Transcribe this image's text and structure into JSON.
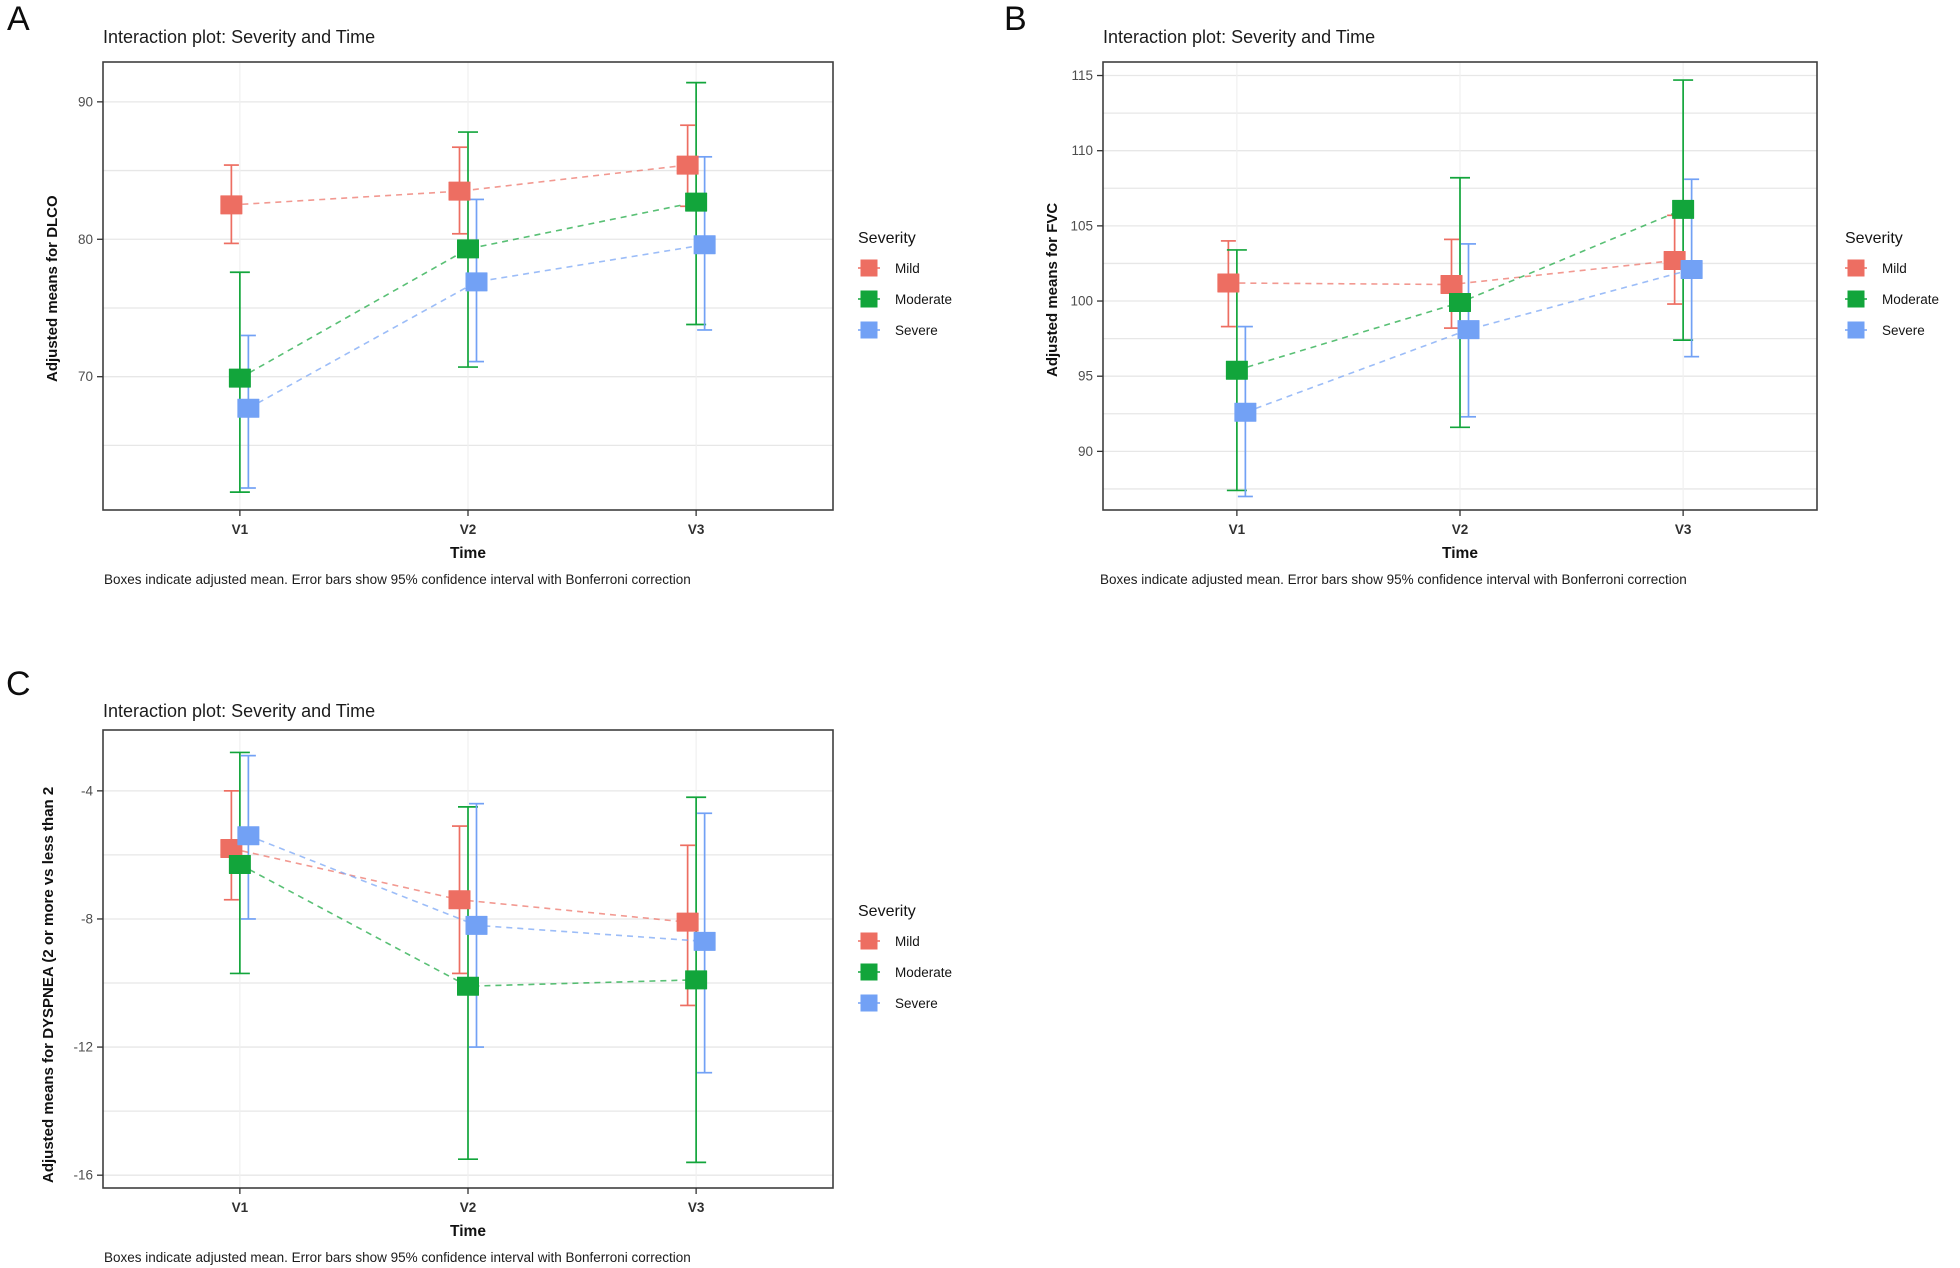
{
  "figure": {
    "legend_title": "Severity",
    "series_names": [
      "Mild",
      "Moderate",
      "Severe"
    ],
    "colors": {
      "mild": "#ED6E62",
      "moderate": "#12A53B",
      "severe": "#72A1F5"
    }
  },
  "chart_data": [
    {
      "type": "line",
      "panel_label": "A",
      "title": "Interaction plot: Severity and Time",
      "ylabel": "Adjusted means for DLCO",
      "xlabel": "Time",
      "caption": "Boxes indicate adjusted mean. Error bars show 95% confidence interval with Bonferroni correction",
      "categories": [
        "V1",
        "V2",
        "V3"
      ],
      "yticks": [
        90,
        80,
        70
      ],
      "gridlines": [
        90,
        85,
        80,
        75,
        70,
        65
      ],
      "ylim": [
        60.3,
        92.9
      ],
      "legend_title": "Severity",
      "legend_position": "right",
      "series": [
        {
          "name": "Mild",
          "color": "#ED6E62",
          "line_style": "dashed",
          "means": [
            82.5,
            83.5,
            85.4
          ],
          "ci_low": [
            79.7,
            80.4,
            82.4
          ],
          "ci_high": [
            85.4,
            86.7,
            88.3
          ]
        },
        {
          "name": "Moderate",
          "color": "#12A53B",
          "line_style": "dashed",
          "means": [
            69.9,
            79.3,
            82.7
          ],
          "ci_low": [
            61.6,
            70.7,
            73.8
          ],
          "ci_high": [
            77.6,
            87.8,
            91.4
          ]
        },
        {
          "name": "Severe",
          "color": "#72A1F5",
          "line_style": "dashed",
          "means": [
            67.7,
            76.9,
            79.6
          ],
          "ci_low": [
            61.9,
            71.1,
            73.4
          ],
          "ci_high": [
            73.0,
            82.9,
            86.0
          ]
        }
      ]
    },
    {
      "type": "line",
      "panel_label": "B",
      "title": "Interaction plot: Severity and Time",
      "ylabel": "Adjusted means for FVC",
      "xlabel": "Time",
      "caption": "Boxes indicate adjusted mean. Error bars show 95% confidence interval with Bonferroni correction",
      "categories": [
        "V1",
        "V2",
        "V3"
      ],
      "yticks": [
        115,
        110,
        105,
        100,
        95,
        90
      ],
      "gridlines": [
        115,
        112.5,
        110,
        107.5,
        105,
        102.5,
        100,
        97.5,
        95,
        92.5,
        90,
        87.5
      ],
      "ylim": [
        86.1,
        115.9
      ],
      "legend_title": "Severity",
      "legend_position": "right",
      "series": [
        {
          "name": "Mild",
          "color": "#ED6E62",
          "line_style": "dashed",
          "means": [
            101.2,
            101.1,
            102.7
          ],
          "ci_low": [
            98.3,
            98.2,
            99.8
          ],
          "ci_high": [
            104.0,
            104.1,
            105.7
          ]
        },
        {
          "name": "Moderate",
          "color": "#12A53B",
          "line_style": "dashed",
          "means": [
            95.4,
            99.9,
            106.1
          ],
          "ci_low": [
            87.4,
            91.6,
            97.4
          ],
          "ci_high": [
            103.4,
            108.2,
            114.7
          ]
        },
        {
          "name": "Severe",
          "color": "#72A1F5",
          "line_style": "dashed",
          "means": [
            92.6,
            98.1,
            102.1
          ],
          "ci_low": [
            87.0,
            92.3,
            96.3
          ],
          "ci_high": [
            98.3,
            103.8,
            108.1
          ]
        }
      ]
    },
    {
      "type": "line",
      "panel_label": "C",
      "title": "Interaction plot: Severity and Time",
      "ylabel": "Adjusted means for DYSPNEA (2 or more vs less than 2",
      "xlabel": "Time",
      "caption": "Boxes indicate adjusted mean. Error bars show 95% confidence interval with Bonferroni correction",
      "categories": [
        "V1",
        "V2",
        "V3"
      ],
      "yticks": [
        -4,
        -8,
        -12,
        -16
      ],
      "gridlines": [
        -4,
        -6,
        -8,
        -10,
        -12,
        -14,
        -16
      ],
      "ylim": [
        -16.4,
        -2.1
      ],
      "legend_title": "Severity",
      "legend_position": "right",
      "series": [
        {
          "name": "Mild",
          "color": "#ED6E62",
          "line_style": "dashed",
          "means": [
            -5.8,
            -7.4,
            -8.1
          ],
          "ci_low": [
            -7.4,
            -9.7,
            -10.7
          ],
          "ci_high": [
            -4.0,
            -5.1,
            -5.7
          ]
        },
        {
          "name": "Moderate",
          "color": "#12A53B",
          "line_style": "dashed",
          "means": [
            -6.3,
            -10.1,
            -9.9
          ],
          "ci_low": [
            -9.7,
            -15.5,
            -15.6
          ],
          "ci_high": [
            -2.8,
            -4.5,
            -4.2
          ]
        },
        {
          "name": "Severe",
          "color": "#72A1F5",
          "line_style": "dashed",
          "means": [
            -5.4,
            -8.2,
            -8.7
          ],
          "ci_low": [
            -8.0,
            -12.0,
            -12.8
          ],
          "ci_high": [
            -2.9,
            -4.4,
            -4.7
          ]
        }
      ]
    }
  ]
}
